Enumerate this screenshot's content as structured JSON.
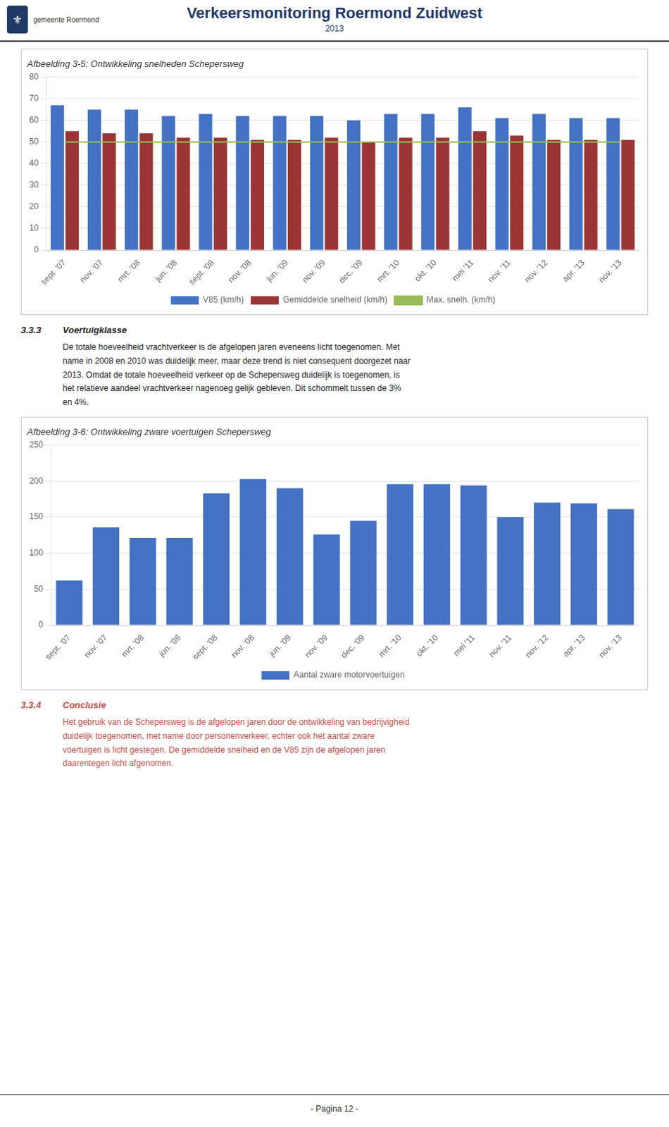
{
  "title": "Verkeersmonitoring Roermond Zuidwest",
  "subtitle": "2013",
  "logo": [
    "⚜",
    "gemeente Roermond"
  ],
  "chart_data": [
    {
      "type": "bar",
      "title": "Afbeelding 3-5: Ontwikkeling snelheden Schepersweg",
      "categories": [
        "sept. '07",
        "nov. '07",
        "mrt. '08",
        "jun. '08",
        "sept. '08",
        "nov. '08",
        "jun. '09",
        "nov. '09",
        "dec. '09",
        "mrt. '10",
        "okt. '10",
        "mei '11",
        "nov. '11",
        "nov. '12",
        "apr. '13",
        "nov. '13"
      ],
      "series": [
        {
          "name": "V85 (km/h)",
          "type": "bar",
          "color": "#4472C4",
          "values": [
            67,
            65,
            65,
            62,
            63,
            62,
            62,
            62,
            60,
            63,
            63,
            66,
            61,
            63,
            61,
            61
          ]
        },
        {
          "name": "Gemiddelde snelheid (km/h)",
          "type": "bar",
          "color": "#9B3535",
          "values": [
            55,
            54,
            54,
            52,
            52,
            51,
            51,
            52,
            50,
            52,
            52,
            55,
            53,
            51,
            51,
            51
          ]
        },
        {
          "name": "Max. snelh. (km/h)",
          "type": "line",
          "color": "#9BBB59",
          "values": [
            50,
            50,
            50,
            50,
            50,
            50,
            50,
            50,
            50,
            50,
            50,
            50,
            50,
            50,
            50,
            50
          ]
        }
      ],
      "ylim": [
        0,
        80
      ],
      "yticks": [
        0,
        10,
        20,
        30,
        40,
        50,
        60,
        70,
        80
      ],
      "grid": true,
      "legend": "bottom"
    },
    {
      "type": "bar",
      "title": "Afbeelding 3-6: Ontwikkeling zware voertuigen Schepersweg",
      "categories": [
        "sept. '07",
        "nov. '07",
        "mrt. '08",
        "jun. '08",
        "sept. '08",
        "nov. '08",
        "jun. '09",
        "nov. '09",
        "dec. '09",
        "mrt. '10",
        "okt. '10",
        "mei '11",
        "nov. '11",
        "nov. '12",
        "apr. '13",
        "nov. '13"
      ],
      "series": [
        {
          "name": "Aantal zware motorvoertuigen",
          "color": "#4472C4",
          "values": [
            62,
            136,
            121,
            121,
            183,
            203,
            190,
            126,
            145,
            196,
            196,
            194,
            150,
            170,
            169,
            161
          ]
        }
      ],
      "ylim": [
        0,
        250
      ],
      "yticks": [
        0,
        50,
        100,
        150,
        200,
        250
      ],
      "grid": true,
      "legend": "bottom"
    }
  ],
  "sections": [
    {
      "number": "3.3.3",
      "heading": "Voertuigklasse",
      "text": "De totale hoeveelheid vrachtverkeer is de afgelopen jaren eveneens licht toegenomen. Met\nname in 2008 en 2010 was duidelijk meer, maar deze trend is niet consequent doorgezet naar\n2013. Omdat de totale hoeveelheid verkeer op de Schepersweg duidelijk is toegenomen, is\nhet relatieve aandeel vrachtverkeer nagenoeg gelijk gebleven. Dit schommelt tussen de 3%\nen 4%."
    },
    {
      "number": "3.3.4",
      "heading": "Conclusie",
      "text": "Het gebruik van de Schepersweg is de afgelopen jaren door de ontwikkeling van bedrijvigheid\nduidelijk toegenomen, met name door personenverkeer, echter ook het aantal zware\nvoertuigen is licht gestegen. De gemiddelde snelheid en de V85 zijn de afgelopen jaren\ndaarentegen licht afgenomen."
    }
  ],
  "footer": "- Pagina 12 -"
}
